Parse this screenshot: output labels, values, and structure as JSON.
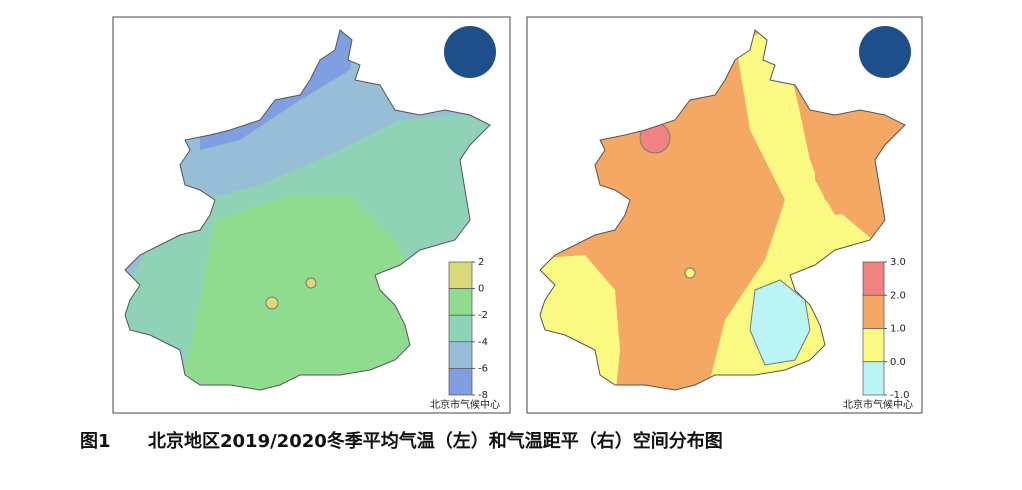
{
  "left_map": {
    "legend": {
      "ticks": [
        2,
        0,
        -2,
        -4,
        -6,
        -8
      ],
      "colors": [
        "#dada7a",
        "#8fdc8f",
        "#8fd2b6",
        "#98bdd6",
        "#7f9fe0"
      ]
    },
    "source": "北京市气候中心"
  },
  "right_map": {
    "legend": {
      "ticks": [
        {
          "value": 3,
          "label": "3.0"
        },
        {
          "value": 2,
          "label": "2.0"
        },
        {
          "value": 1,
          "label": "1.0"
        },
        {
          "value": 0,
          "label": "0.0"
        },
        {
          "value": -1,
          "label": "-1.0"
        }
      ],
      "colors": [
        "#f08282",
        "#f5a863",
        "#fafa82",
        "#baf4f4"
      ]
    },
    "source": "北京市气候中心"
  },
  "figure_label": "图1",
  "caption": "北京地区2019/2020冬季平均气温（左）和气温距平（右）空间分布图"
}
